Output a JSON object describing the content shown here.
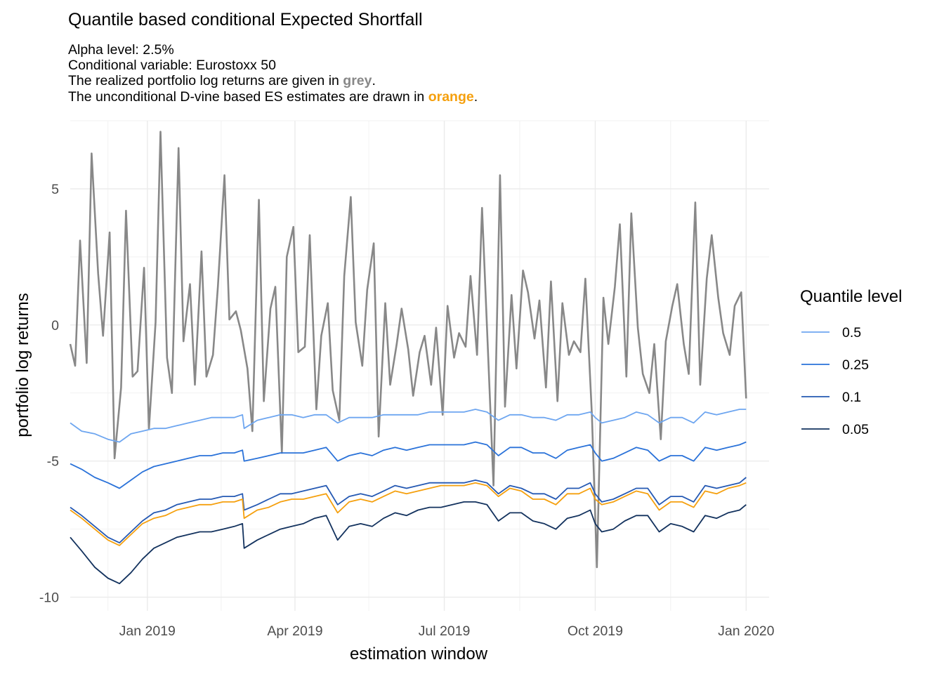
{
  "chart_data": {
    "type": "line",
    "title": "Quantile based conditional Expected Shortfall",
    "subtitle": {
      "line1": "Alpha level: 2.5%",
      "line2": "Conditional variable: Eurostoxx 50",
      "line3_prefix": "The realized portfolio log returns are given in ",
      "line3_highlight": "grey",
      "line3_suffix": ".",
      "line4_prefix": "The unconditional D-vine based ES estimates are drawn in ",
      "line4_highlight": "orange",
      "line4_suffix": "."
    },
    "xlabel": "estimation window",
    "ylabel": "portfolio log returns",
    "xlim": [
      "2018-11-15",
      "2020-01-15"
    ],
    "ylim": [
      -10.5,
      7.5
    ],
    "x_ticks": [
      {
        "value": "2019-01-01",
        "label": "Jan 2019"
      },
      {
        "value": "2019-04-01",
        "label": "Apr 2019"
      },
      {
        "value": "2019-07-01",
        "label": "Jul 2019"
      },
      {
        "value": "2019-10-01",
        "label": "Oct 2019"
      },
      {
        "value": "2020-01-01",
        "label": "Jan 2020"
      }
    ],
    "y_ticks": [
      {
        "value": 5,
        "label": "5"
      },
      {
        "value": 0,
        "label": "0"
      },
      {
        "value": -5,
        "label": "-5"
      },
      {
        "value": -10,
        "label": "-10"
      }
    ],
    "grid": true,
    "legend": {
      "title": "Quantile level",
      "placement": "right",
      "entries": [
        {
          "label": "0.5",
          "color": "#6ea6f0"
        },
        {
          "label": "0.25",
          "color": "#2a72d9"
        },
        {
          "label": "0.1",
          "color": "#2559b3"
        },
        {
          "label": "0.05",
          "color": "#13325e"
        }
      ]
    },
    "colors": {
      "returns": "#888888",
      "unconditional": "#f5a00e",
      "highlight_grey": "#888888",
      "highlight_orange": "#f5a00e"
    },
    "series": [
      {
        "key": "returns",
        "x": [
          "2018-11-15",
          "2018-11-18",
          "2018-11-21",
          "2018-11-25",
          "2018-11-28",
          "2018-12-02",
          "2018-12-05",
          "2018-12-09",
          "2018-12-12",
          "2018-12-16",
          "2018-12-19",
          "2018-12-23",
          "2018-12-26",
          "2018-12-30",
          "2019-01-02",
          "2019-01-06",
          "2019-01-09",
          "2019-01-13",
          "2019-01-16",
          "2019-01-20",
          "2019-01-23",
          "2019-01-27",
          "2019-01-30",
          "2019-02-03",
          "2019-02-06",
          "2019-02-10",
          "2019-02-13",
          "2019-02-17",
          "2019-02-20",
          "2019-02-24",
          "2019-02-27",
          "2019-03-03",
          "2019-03-06",
          "2019-03-10",
          "2019-03-13",
          "2019-03-17",
          "2019-03-20",
          "2019-03-24",
          "2019-03-27",
          "2019-03-31",
          "2019-04-03",
          "2019-04-07",
          "2019-04-10",
          "2019-04-14",
          "2019-04-17",
          "2019-04-21",
          "2019-04-24",
          "2019-04-28",
          "2019-05-01",
          "2019-05-05",
          "2019-05-08",
          "2019-05-12",
          "2019-05-15",
          "2019-05-19",
          "2019-05-22",
          "2019-05-26",
          "2019-05-29",
          "2019-06-02",
          "2019-06-05",
          "2019-06-09",
          "2019-06-12",
          "2019-06-16",
          "2019-06-19",
          "2019-06-23",
          "2019-06-26",
          "2019-06-30",
          "2019-07-03",
          "2019-07-07",
          "2019-07-10",
          "2019-07-14",
          "2019-07-17",
          "2019-07-21",
          "2019-07-24",
          "2019-07-28",
          "2019-07-31",
          "2019-08-04",
          "2019-08-07",
          "2019-08-11",
          "2019-08-14",
          "2019-08-18",
          "2019-08-21",
          "2019-08-25",
          "2019-08-28",
          "2019-09-01",
          "2019-09-04",
          "2019-09-08",
          "2019-09-11",
          "2019-09-15",
          "2019-09-18",
          "2019-09-22",
          "2019-09-25",
          "2019-09-29",
          "2019-10-02",
          "2019-10-06",
          "2019-10-09",
          "2019-10-13",
          "2019-10-16",
          "2019-10-20",
          "2019-10-23",
          "2019-10-27",
          "2019-10-30",
          "2019-11-03",
          "2019-11-06",
          "2019-11-10",
          "2019-11-13",
          "2019-11-17",
          "2019-11-20",
          "2019-11-24",
          "2019-11-27",
          "2019-12-01",
          "2019-12-04",
          "2019-12-08",
          "2019-12-11",
          "2019-12-15",
          "2019-12-18",
          "2019-12-22",
          "2019-12-25",
          "2019-12-29",
          "2020-01-01"
        ],
        "values": [
          -0.7,
          -1.5,
          3.1,
          -1.4,
          6.3,
          1.9,
          -0.4,
          3.4,
          -4.9,
          -2.3,
          4.2,
          -1.9,
          -1.7,
          2.1,
          -3.8,
          0.1,
          7.1,
          -1.2,
          -2.5,
          6.5,
          -0.6,
          1.5,
          -2.2,
          2.7,
          -1.9,
          -1.1,
          1.4,
          5.5,
          0.2,
          0.5,
          -0.2,
          -1.6,
          -3.9,
          4.6,
          -2.8,
          0.6,
          1.4,
          -4.7,
          2.5,
          3.6,
          -1.0,
          -0.8,
          3.3,
          -3.1,
          -0.4,
          0.8,
          -2.4,
          -3.5,
          1.8,
          4.7,
          0.1,
          -1.5,
          1.3,
          3.0,
          -4.1,
          0.8,
          -2.2,
          -0.7,
          0.6,
          -0.9,
          -2.6,
          -1.0,
          -0.4,
          -2.2,
          -0.1,
          -3.3,
          0.7,
          -1.2,
          -0.3,
          -0.8,
          1.8,
          -1.1,
          4.3,
          -1.5,
          -5.9,
          5.5,
          -3.0,
          1.1,
          -1.6,
          2.0,
          1.2,
          -0.5,
          0.9,
          -2.3,
          1.6,
          -2.8,
          0.8,
          -1.1,
          -0.6,
          -1.0,
          1.7,
          -3.3,
          -8.9,
          1.0,
          -0.7,
          1.4,
          3.7,
          -1.9,
          4.1,
          -0.1,
          -1.8,
          -2.5,
          -0.7,
          -4.2,
          -0.6,
          0.7,
          1.5,
          -0.7,
          -1.8,
          4.5,
          -2.2,
          1.7,
          3.3,
          1.0,
          -0.3,
          -1.1,
          0.7,
          1.2,
          -2.7
        ]
      },
      {
        "key": "q05",
        "x": [
          "2018-11-15",
          "2018-11-22",
          "2018-11-30",
          "2018-12-08",
          "2018-12-15",
          "2018-12-22",
          "2018-12-29",
          "2019-01-05",
          "2019-01-12",
          "2019-01-19",
          "2019-01-26",
          "2019-02-02",
          "2019-02-09",
          "2019-02-16",
          "2019-02-23",
          "2019-02-28",
          "2019-03-01",
          "2019-03-09",
          "2019-03-16",
          "2019-03-23",
          "2019-03-30",
          "2019-04-06",
          "2019-04-13",
          "2019-04-20",
          "2019-04-27",
          "2019-05-04",
          "2019-05-11",
          "2019-05-18",
          "2019-05-25",
          "2019-06-01",
          "2019-06-08",
          "2019-06-15",
          "2019-06-22",
          "2019-06-29",
          "2019-07-06",
          "2019-07-13",
          "2019-07-20",
          "2019-07-27",
          "2019-08-03",
          "2019-08-10",
          "2019-08-17",
          "2019-08-24",
          "2019-08-31",
          "2019-09-07",
          "2019-09-14",
          "2019-09-21",
          "2019-09-28",
          "2019-10-01",
          "2019-10-05",
          "2019-10-12",
          "2019-10-19",
          "2019-10-26",
          "2019-11-02",
          "2019-11-09",
          "2019-11-16",
          "2019-11-23",
          "2019-11-30",
          "2019-12-07",
          "2019-12-14",
          "2019-12-21",
          "2019-12-28",
          "2020-01-01"
        ],
        "values": [
          -3.6,
          -3.9,
          -4.0,
          -4.2,
          -4.3,
          -4.0,
          -3.9,
          -3.8,
          -3.8,
          -3.7,
          -3.6,
          -3.5,
          -3.4,
          -3.4,
          -3.4,
          -3.3,
          -3.8,
          -3.5,
          -3.4,
          -3.3,
          -3.3,
          -3.4,
          -3.3,
          -3.3,
          -3.6,
          -3.4,
          -3.4,
          -3.4,
          -3.3,
          -3.3,
          -3.3,
          -3.3,
          -3.2,
          -3.2,
          -3.2,
          -3.2,
          -3.1,
          -3.2,
          -3.5,
          -3.3,
          -3.3,
          -3.4,
          -3.4,
          -3.5,
          -3.3,
          -3.3,
          -3.2,
          -3.4,
          -3.6,
          -3.5,
          -3.4,
          -3.2,
          -3.3,
          -3.6,
          -3.4,
          -3.4,
          -3.6,
          -3.2,
          -3.3,
          -3.2,
          -3.1,
          -3.1
        ]
      },
      {
        "key": "q025",
        "x": [
          "2018-11-15",
          "2018-11-22",
          "2018-11-30",
          "2018-12-08",
          "2018-12-15",
          "2018-12-22",
          "2018-12-29",
          "2019-01-05",
          "2019-01-12",
          "2019-01-19",
          "2019-01-26",
          "2019-02-02",
          "2019-02-09",
          "2019-02-16",
          "2019-02-23",
          "2019-02-28",
          "2019-03-01",
          "2019-03-09",
          "2019-03-16",
          "2019-03-23",
          "2019-03-30",
          "2019-04-06",
          "2019-04-13",
          "2019-04-20",
          "2019-04-27",
          "2019-05-04",
          "2019-05-11",
          "2019-05-18",
          "2019-05-25",
          "2019-06-01",
          "2019-06-08",
          "2019-06-15",
          "2019-06-22",
          "2019-06-29",
          "2019-07-06",
          "2019-07-13",
          "2019-07-20",
          "2019-07-27",
          "2019-08-03",
          "2019-08-10",
          "2019-08-17",
          "2019-08-24",
          "2019-08-31",
          "2019-09-07",
          "2019-09-14",
          "2019-09-21",
          "2019-09-28",
          "2019-10-01",
          "2019-10-05",
          "2019-10-12",
          "2019-10-19",
          "2019-10-26",
          "2019-11-02",
          "2019-11-09",
          "2019-11-16",
          "2019-11-23",
          "2019-11-30",
          "2019-12-07",
          "2019-12-14",
          "2019-12-21",
          "2019-12-28",
          "2020-01-01"
        ],
        "values": [
          -5.1,
          -5.3,
          -5.6,
          -5.8,
          -6.0,
          -5.7,
          -5.4,
          -5.2,
          -5.1,
          -5.0,
          -4.9,
          -4.8,
          -4.8,
          -4.7,
          -4.7,
          -4.6,
          -5.0,
          -4.9,
          -4.8,
          -4.7,
          -4.7,
          -4.7,
          -4.6,
          -4.5,
          -5.0,
          -4.8,
          -4.7,
          -4.8,
          -4.6,
          -4.5,
          -4.6,
          -4.5,
          -4.4,
          -4.4,
          -4.4,
          -4.4,
          -4.3,
          -4.4,
          -4.8,
          -4.5,
          -4.5,
          -4.7,
          -4.7,
          -4.9,
          -4.6,
          -4.5,
          -4.4,
          -4.7,
          -5.0,
          -4.9,
          -4.7,
          -4.5,
          -4.6,
          -5.0,
          -4.8,
          -4.8,
          -5.0,
          -4.5,
          -4.6,
          -4.5,
          -4.4,
          -4.3
        ]
      },
      {
        "key": "q01",
        "x": [
          "2018-11-15",
          "2018-11-22",
          "2018-11-30",
          "2018-12-08",
          "2018-12-15",
          "2018-12-22",
          "2018-12-29",
          "2019-01-05",
          "2019-01-12",
          "2019-01-19",
          "2019-01-26",
          "2019-02-02",
          "2019-02-09",
          "2019-02-16",
          "2019-02-23",
          "2019-02-28",
          "2019-03-01",
          "2019-03-09",
          "2019-03-16",
          "2019-03-23",
          "2019-03-30",
          "2019-04-06",
          "2019-04-13",
          "2019-04-20",
          "2019-04-27",
          "2019-05-04",
          "2019-05-11",
          "2019-05-18",
          "2019-05-25",
          "2019-06-01",
          "2019-06-08",
          "2019-06-15",
          "2019-06-22",
          "2019-06-29",
          "2019-07-06",
          "2019-07-13",
          "2019-07-20",
          "2019-07-27",
          "2019-08-03",
          "2019-08-10",
          "2019-08-17",
          "2019-08-24",
          "2019-08-31",
          "2019-09-07",
          "2019-09-14",
          "2019-09-21",
          "2019-09-28",
          "2019-10-01",
          "2019-10-05",
          "2019-10-12",
          "2019-10-19",
          "2019-10-26",
          "2019-11-02",
          "2019-11-09",
          "2019-11-16",
          "2019-11-23",
          "2019-11-30",
          "2019-12-07",
          "2019-12-14",
          "2019-12-21",
          "2019-12-28",
          "2020-01-01"
        ],
        "values": [
          -6.7,
          -7.0,
          -7.4,
          -7.8,
          -8.0,
          -7.6,
          -7.2,
          -6.9,
          -6.8,
          -6.6,
          -6.5,
          -6.4,
          -6.4,
          -6.3,
          -6.3,
          -6.2,
          -6.8,
          -6.6,
          -6.4,
          -6.2,
          -6.2,
          -6.1,
          -6.0,
          -5.9,
          -6.6,
          -6.3,
          -6.2,
          -6.3,
          -6.1,
          -5.9,
          -6.0,
          -5.9,
          -5.8,
          -5.8,
          -5.8,
          -5.8,
          -5.7,
          -5.8,
          -6.2,
          -5.9,
          -6.0,
          -6.2,
          -6.2,
          -6.4,
          -6.0,
          -6.0,
          -5.8,
          -6.2,
          -6.5,
          -6.4,
          -6.2,
          -6.0,
          -6.0,
          -6.6,
          -6.3,
          -6.3,
          -6.5,
          -5.9,
          -6.0,
          -5.9,
          -5.8,
          -5.6
        ]
      },
      {
        "key": "q005",
        "x": [
          "2018-11-15",
          "2018-11-22",
          "2018-11-30",
          "2018-12-08",
          "2018-12-15",
          "2018-12-22",
          "2018-12-29",
          "2019-01-05",
          "2019-01-12",
          "2019-01-19",
          "2019-01-26",
          "2019-02-02",
          "2019-02-09",
          "2019-02-16",
          "2019-02-23",
          "2019-02-28",
          "2019-03-01",
          "2019-03-09",
          "2019-03-16",
          "2019-03-23",
          "2019-03-30",
          "2019-04-06",
          "2019-04-13",
          "2019-04-20",
          "2019-04-27",
          "2019-05-04",
          "2019-05-11",
          "2019-05-18",
          "2019-05-25",
          "2019-06-01",
          "2019-06-08",
          "2019-06-15",
          "2019-06-22",
          "2019-06-29",
          "2019-07-06",
          "2019-07-13",
          "2019-07-20",
          "2019-07-27",
          "2019-08-03",
          "2019-08-10",
          "2019-08-17",
          "2019-08-24",
          "2019-08-31",
          "2019-09-07",
          "2019-09-14",
          "2019-09-21",
          "2019-09-28",
          "2019-10-01",
          "2019-10-05",
          "2019-10-12",
          "2019-10-19",
          "2019-10-26",
          "2019-11-02",
          "2019-11-09",
          "2019-11-16",
          "2019-11-23",
          "2019-11-30",
          "2019-12-07",
          "2019-12-14",
          "2019-12-21",
          "2019-12-28",
          "2020-01-01"
        ],
        "values": [
          -7.8,
          -8.3,
          -8.9,
          -9.3,
          -9.5,
          -9.1,
          -8.6,
          -8.2,
          -8.0,
          -7.8,
          -7.7,
          -7.6,
          -7.6,
          -7.5,
          -7.4,
          -7.3,
          -8.2,
          -7.9,
          -7.7,
          -7.5,
          -7.4,
          -7.3,
          -7.1,
          -7.0,
          -7.9,
          -7.4,
          -7.3,
          -7.4,
          -7.1,
          -6.9,
          -7.0,
          -6.8,
          -6.7,
          -6.7,
          -6.6,
          -6.5,
          -6.5,
          -6.6,
          -7.2,
          -6.9,
          -6.9,
          -7.2,
          -7.3,
          -7.5,
          -7.1,
          -7.0,
          -6.8,
          -7.3,
          -7.6,
          -7.5,
          -7.2,
          -7.0,
          -7.0,
          -7.6,
          -7.3,
          -7.4,
          -7.6,
          -7.0,
          -7.1,
          -6.9,
          -6.8,
          -6.6
        ]
      },
      {
        "key": "unconditional",
        "x": [
          "2018-11-15",
          "2018-11-22",
          "2018-11-30",
          "2018-12-08",
          "2018-12-15",
          "2018-12-22",
          "2018-12-29",
          "2019-01-05",
          "2019-01-12",
          "2019-01-19",
          "2019-01-26",
          "2019-02-02",
          "2019-02-09",
          "2019-02-16",
          "2019-02-23",
          "2019-02-28",
          "2019-03-01",
          "2019-03-09",
          "2019-03-16",
          "2019-03-23",
          "2019-03-30",
          "2019-04-06",
          "2019-04-13",
          "2019-04-20",
          "2019-04-27",
          "2019-05-04",
          "2019-05-11",
          "2019-05-18",
          "2019-05-25",
          "2019-06-01",
          "2019-06-08",
          "2019-06-15",
          "2019-06-22",
          "2019-06-29",
          "2019-07-06",
          "2019-07-13",
          "2019-07-20",
          "2019-07-27",
          "2019-08-03",
          "2019-08-10",
          "2019-08-17",
          "2019-08-24",
          "2019-08-31",
          "2019-09-07",
          "2019-09-14",
          "2019-09-21",
          "2019-09-28",
          "2019-10-01",
          "2019-10-05",
          "2019-10-12",
          "2019-10-19",
          "2019-10-26",
          "2019-11-02",
          "2019-11-09",
          "2019-11-16",
          "2019-11-23",
          "2019-11-30",
          "2019-12-07",
          "2019-12-14",
          "2019-12-21",
          "2019-12-28",
          "2020-01-01"
        ],
        "values": [
          -6.8,
          -7.1,
          -7.5,
          -7.9,
          -8.1,
          -7.7,
          -7.3,
          -7.1,
          -7.0,
          -6.8,
          -6.7,
          -6.6,
          -6.6,
          -6.5,
          -6.5,
          -6.4,
          -7.1,
          -6.8,
          -6.7,
          -6.5,
          -6.4,
          -6.4,
          -6.3,
          -6.2,
          -6.9,
          -6.5,
          -6.4,
          -6.5,
          -6.3,
          -6.1,
          -6.2,
          -6.1,
          -6.0,
          -5.9,
          -5.9,
          -5.9,
          -5.8,
          -5.9,
          -6.3,
          -6.0,
          -6.1,
          -6.4,
          -6.4,
          -6.6,
          -6.2,
          -6.2,
          -6.0,
          -6.4,
          -6.6,
          -6.5,
          -6.3,
          -6.1,
          -6.2,
          -6.8,
          -6.5,
          -6.5,
          -6.7,
          -6.1,
          -6.2,
          -6.0,
          -5.9,
          -5.8
        ]
      }
    ]
  }
}
